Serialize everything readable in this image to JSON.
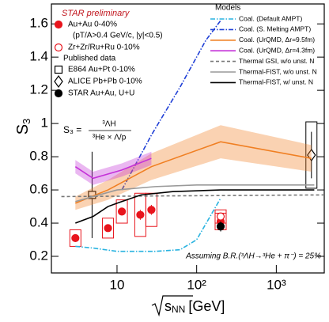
{
  "chart_data": {
    "type": "line",
    "title": "STAR preliminary",
    "x_label": {
      "root": "s",
      "sub": "NN",
      "unit": "[GeV]"
    },
    "y_label": {
      "main": "S",
      "sub": "3"
    },
    "xlim": [
      1.5,
      4000
    ],
    "log_x": true,
    "xticks": [
      10,
      {
        "value": 100,
        "label": "10²"
      },
      {
        "value": 1000,
        "label": "10³"
      }
    ],
    "ylim": [
      0.1,
      1.72
    ],
    "yticks": [
      0.2,
      0.4,
      0.6,
      0.8,
      1,
      1.2,
      1.4,
      1.6
    ],
    "annotations": {
      "selection": "(pT/A>0.4 GeV/c, |y|<0.5)",
      "published_header": "Published data",
      "models_header": "Models",
      "branching_ratio": "Assuming B.R.(³ΛH→³He + π⁻) = 25%",
      "formula": {
        "lhs": "S₃ =",
        "numerator": "³ΛH",
        "denominator": "³He × Λ/p"
      }
    },
    "series": [
      {
        "name": "Au+Au 0-40%",
        "color": "#e8141c",
        "kind": "points",
        "marker": "circle-filled",
        "x": [
          3,
          7.7,
          11.5,
          19.6,
          27,
          200
        ],
        "values": [
          0.31,
          0.37,
          0.47,
          0.45,
          0.48,
          0.41
        ],
        "errors": [
          0.02,
          0.02,
          0.02,
          0.03,
          0.03,
          0.02
        ],
        "sys": [
          0.05,
          0.06,
          0.07,
          0.13,
          0.1,
          0.05
        ]
      },
      {
        "name": "Zr+Zr/Ru+Ru 0-10%",
        "color": "#e8141c",
        "kind": "points",
        "marker": "circle-open",
        "x": [
          200
        ],
        "values": [
          0.44
        ],
        "errors": [
          0.02
        ],
        "sys": [
          0.04
        ]
      },
      {
        "name": "E864 Au+Pt 0-10%",
        "color": "#000000",
        "kind": "points",
        "marker": "square-open",
        "x": [
          4.86
        ],
        "values": [
          0.57
        ],
        "errors": [
          0.26
        ]
      },
      {
        "name": "ALICE Pb+Pb 0-10%",
        "color": "#000000",
        "kind": "points",
        "marker": "diamond-open",
        "x": [
          2760
        ],
        "values": [
          0.81
        ],
        "errors": [
          0.14
        ],
        "sys": [
          0.2
        ]
      },
      {
        "name": "STAR Au+Au, U+U",
        "color": "#000000",
        "kind": "points",
        "marker": "circle-filled",
        "x": [
          200
        ],
        "values": [
          0.38
        ],
        "errors": [
          0.03
        ]
      },
      {
        "name": "Coal. (Default AMPT)",
        "color": "#2ab3e0",
        "kind": "line",
        "dash": "dashdot",
        "x": [
          3,
          5,
          10,
          30,
          62,
          100,
          200
        ],
        "values": [
          0.26,
          0.25,
          0.23,
          0.23,
          0.24,
          0.3,
          0.55
        ]
      },
      {
        "name": "Coal. (S. Melting AMPT)",
        "color": "#1f3fd6",
        "kind": "line",
        "dash": "dashdot",
        "x": [
          11.5,
          27,
          62,
          130,
          200
        ],
        "values": [
          0.6,
          0.93,
          1.22,
          1.5,
          1.62
        ]
      },
      {
        "name": "Coal. (UrQMD, Δr=9.5fm)",
        "color": "#f07f22",
        "kind": "line",
        "dash": "solid",
        "x": [
          3,
          7.7,
          27,
          200,
          2760
        ],
        "values": [
          0.52,
          0.6,
          0.74,
          0.89,
          0.79
        ],
        "band": [
          0.04,
          0.06,
          0.08,
          0.1,
          0.08
        ]
      },
      {
        "name": "Coal. (UrQMD, Δr=4.3fm)",
        "color": "#c431d8",
        "kind": "line",
        "dash": "solid",
        "x": [
          3,
          5,
          11.5,
          27
        ],
        "values": [
          0.74,
          0.67,
          0.72,
          0.79
        ],
        "band": [
          0.04,
          0.04,
          0.04,
          0.04
        ]
      },
      {
        "name": "Thermal GSI, w/o unst. N",
        "color": "#777777",
        "kind": "line",
        "dash": "dashed",
        "x": [
          2,
          4000
        ],
        "values": [
          0.56,
          0.57
        ]
      },
      {
        "name": "Thermal-FIST, w/o unst. N",
        "color": "#999999",
        "kind": "line",
        "dash": "solid",
        "x": [
          3,
          5,
          10,
          30,
          100,
          3000
        ],
        "values": [
          0.53,
          0.56,
          0.6,
          0.62,
          0.63,
          0.63
        ]
      },
      {
        "name": "Thermal-FIST, w/ unst. N",
        "color": "#000000",
        "kind": "line",
        "dash": "solid",
        "x": [
          3,
          5,
          7.7,
          10,
          20,
          50,
          200,
          3000
        ],
        "values": [
          0.4,
          0.44,
          0.5,
          0.52,
          0.57,
          0.59,
          0.6,
          0.6
        ]
      }
    ]
  }
}
